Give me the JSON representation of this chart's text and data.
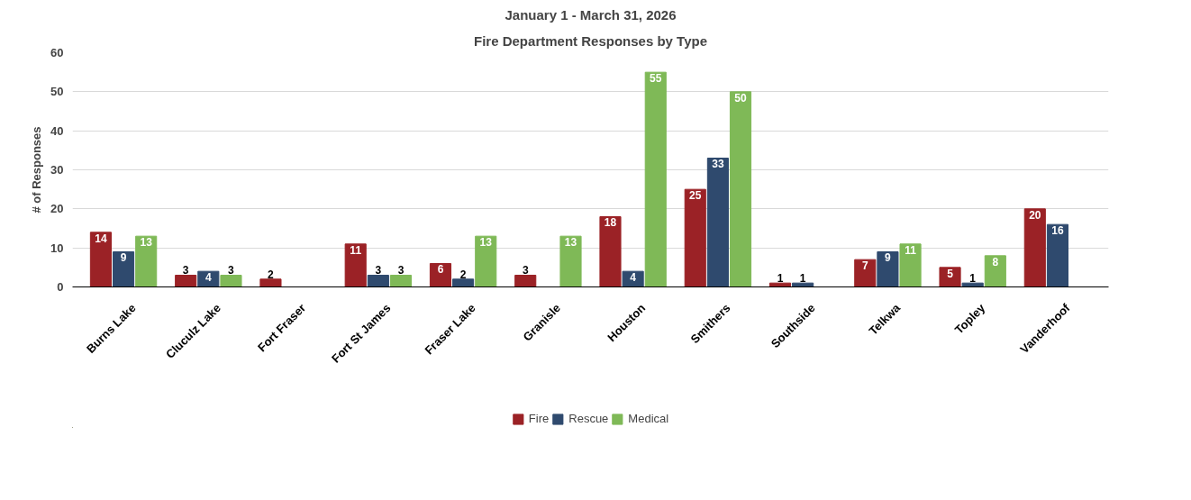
{
  "chart_data": {
    "type": "bar",
    "title": "January 1 - March 31, 2026",
    "subtitle": "Fire Department Responses by Type",
    "ylabel": "# of Responses",
    "categories": [
      "Burns Lake",
      "Cluculz Lake",
      "Fort Fraser",
      "Fort St James",
      "Fraser Lake",
      "Granisle",
      "Houston",
      "Smithers",
      "Southside",
      "Telkwa",
      "Topley",
      "Vanderhoof"
    ],
    "series": [
      {
        "name": "Fire",
        "color": "#9b2226",
        "values": [
          14,
          3,
          2,
          11,
          6,
          3,
          18,
          25,
          1,
          7,
          5,
          20
        ],
        "value_labels": [
          "14",
          "3",
          "2",
          "11",
          "6",
          "3",
          "18",
          "25",
          "1",
          "7",
          "5",
          "20"
        ]
      },
      {
        "name": "Rescue",
        "color": "#2f4a6e",
        "values": [
          9,
          4,
          0,
          3,
          2,
          0,
          4,
          33,
          1,
          9,
          1,
          16
        ],
        "value_labels": [
          "9",
          "4",
          null,
          "3",
          "2",
          null,
          "4",
          "33",
          "1",
          "9",
          "1",
          "16"
        ]
      },
      {
        "name": "Medical",
        "color": "#7fb957",
        "values": [
          13,
          3,
          0,
          3,
          13,
          13,
          55,
          50,
          0,
          11,
          8,
          0
        ],
        "value_labels": [
          "13",
          "3",
          null,
          "3",
          "13",
          "13",
          "55",
          "50",
          null,
          "11",
          "8",
          null
        ]
      }
    ],
    "ylim": [
      0,
      60
    ],
    "yticks": [
      0,
      10,
      20,
      30,
      40,
      50,
      60
    ],
    "grid": "y",
    "legend": "bottom"
  }
}
